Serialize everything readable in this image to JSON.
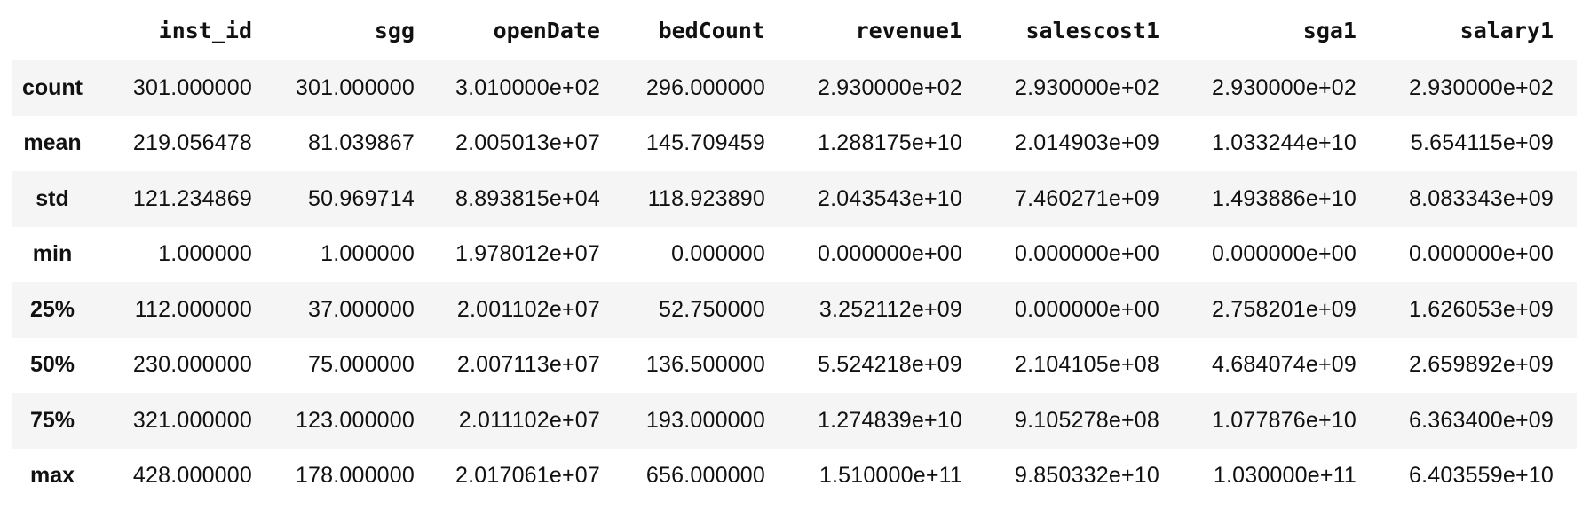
{
  "table": {
    "index_header": "",
    "columns": [
      "inst_id",
      "sgg",
      "openDate",
      "bedCount",
      "revenue1",
      "salescost1",
      "sga1",
      "salary1"
    ],
    "rows": [
      {
        "label": "count",
        "cells": [
          "301.000000",
          "301.000000",
          "3.010000e+02",
          "296.000000",
          "2.930000e+02",
          "2.930000e+02",
          "2.930000e+02",
          "2.930000e+02"
        ]
      },
      {
        "label": "mean",
        "cells": [
          "219.056478",
          "81.039867",
          "2.005013e+07",
          "145.709459",
          "1.288175e+10",
          "2.014903e+09",
          "1.033244e+10",
          "5.654115e+09"
        ]
      },
      {
        "label": "std",
        "cells": [
          "121.234869",
          "50.969714",
          "8.893815e+04",
          "118.923890",
          "2.043543e+10",
          "7.460271e+09",
          "1.493886e+10",
          "8.083343e+09"
        ]
      },
      {
        "label": "min",
        "cells": [
          "1.000000",
          "1.000000",
          "1.978012e+07",
          "0.000000",
          "0.000000e+00",
          "0.000000e+00",
          "0.000000e+00",
          "0.000000e+00"
        ]
      },
      {
        "label": "25%",
        "cells": [
          "112.000000",
          "37.000000",
          "2.001102e+07",
          "52.750000",
          "3.252112e+09",
          "0.000000e+00",
          "2.758201e+09",
          "1.626053e+09"
        ]
      },
      {
        "label": "50%",
        "cells": [
          "230.000000",
          "75.000000",
          "2.007113e+07",
          "136.500000",
          "5.524218e+09",
          "2.104105e+08",
          "4.684074e+09",
          "2.659892e+09"
        ]
      },
      {
        "label": "75%",
        "cells": [
          "321.000000",
          "123.000000",
          "2.011102e+07",
          "193.000000",
          "1.274839e+10",
          "9.105278e+08",
          "1.077876e+10",
          "6.363400e+09"
        ]
      },
      {
        "label": "max",
        "cells": [
          "428.000000",
          "178.000000",
          "2.017061e+07",
          "656.000000",
          "1.510000e+11",
          "9.850332e+10",
          "1.030000e+11",
          "6.403559e+10"
        ]
      }
    ]
  },
  "colors": {
    "stripe": "#f5f5f5",
    "background": "#ffffff",
    "text": "#111111"
  }
}
